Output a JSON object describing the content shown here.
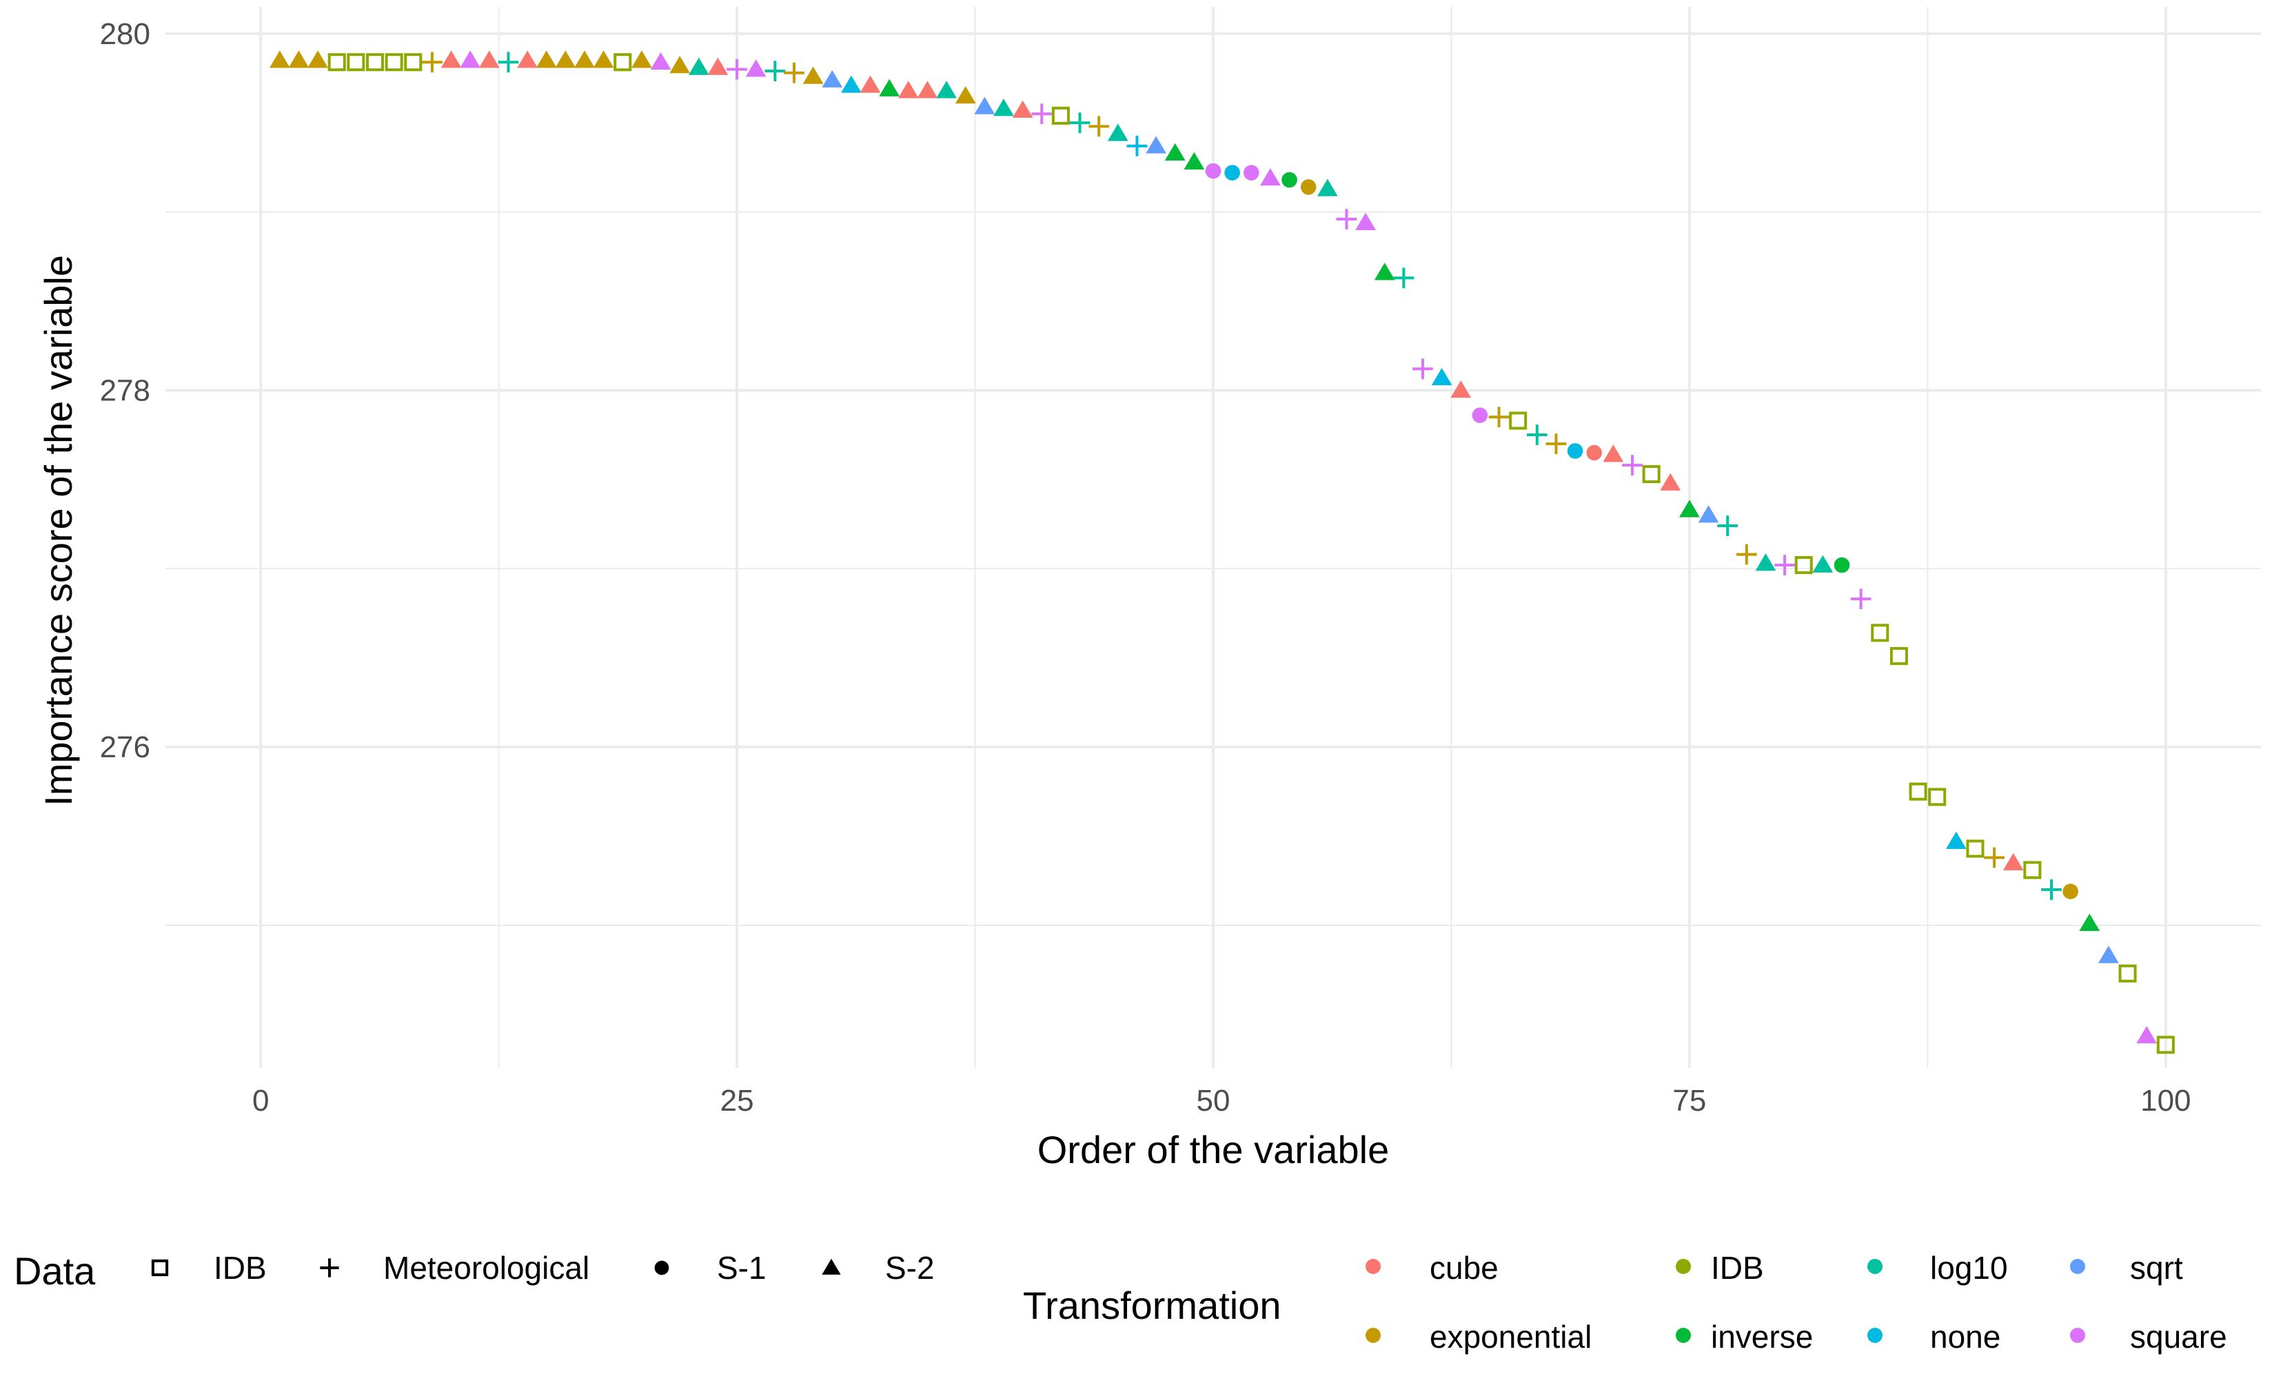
{
  "chart_data": {
    "type": "scatter",
    "title": "",
    "xlabel": "Order of the variable",
    "ylabel": "Importance score of the variable",
    "xlim": [
      -5,
      105
    ],
    "ylim": [
      274.2,
      280.15
    ],
    "x_ticks": [
      0,
      25,
      50,
      75,
      100
    ],
    "x_tick_labels": [
      "0",
      "25",
      "50",
      "75",
      "100"
    ],
    "y_ticks": [
      276,
      278,
      280
    ],
    "y_tick_labels": [
      "276",
      "278",
      "280"
    ],
    "grid": true,
    "legend_data": {
      "title": "Data",
      "items": [
        {
          "key": "IDB",
          "label": "IDB",
          "shape": "open-square"
        },
        {
          "key": "Meteorological",
          "label": "Meteorological",
          "shape": "plus"
        },
        {
          "key": "S-1",
          "label": "S-1",
          "shape": "circle"
        },
        {
          "key": "S-2",
          "label": "S-2",
          "shape": "triangle"
        }
      ]
    },
    "legend_transformation": {
      "title": "Transformation",
      "items": [
        {
          "key": "cube",
          "label": "cube",
          "color": "#F8766D"
        },
        {
          "key": "exponential",
          "label": "exponential",
          "color": "#C49A00"
        },
        {
          "key": "IDB",
          "label": "IDB",
          "color": "#8FA800"
        },
        {
          "key": "inverse",
          "label": "inverse",
          "color": "#00BA38"
        },
        {
          "key": "log10",
          "label": "log10",
          "color": "#00C19F"
        },
        {
          "key": "none",
          "label": "none",
          "color": "#00B9E3"
        },
        {
          "key": "sqrt",
          "label": "sqrt",
          "color": "#619CFF"
        },
        {
          "key": "square",
          "label": "square",
          "color": "#DB72FB"
        }
      ]
    },
    "points": [
      {
        "x": 1,
        "y": 279.85,
        "data": "S-2",
        "transformation": "exponential"
      },
      {
        "x": 2,
        "y": 279.85,
        "data": "S-2",
        "transformation": "exponential"
      },
      {
        "x": 3,
        "y": 279.85,
        "data": "S-2",
        "transformation": "exponential"
      },
      {
        "x": 4,
        "y": 279.84,
        "data": "IDB",
        "transformation": "IDB"
      },
      {
        "x": 5,
        "y": 279.84,
        "data": "IDB",
        "transformation": "IDB"
      },
      {
        "x": 6,
        "y": 279.84,
        "data": "IDB",
        "transformation": "IDB"
      },
      {
        "x": 7,
        "y": 279.84,
        "data": "IDB",
        "transformation": "IDB"
      },
      {
        "x": 8,
        "y": 279.84,
        "data": "IDB",
        "transformation": "IDB"
      },
      {
        "x": 9,
        "y": 279.84,
        "data": "Meteorological",
        "transformation": "exponential"
      },
      {
        "x": 10,
        "y": 279.85,
        "data": "S-2",
        "transformation": "cube"
      },
      {
        "x": 11,
        "y": 279.85,
        "data": "S-2",
        "transformation": "square"
      },
      {
        "x": 12,
        "y": 279.85,
        "data": "S-2",
        "transformation": "cube"
      },
      {
        "x": 13,
        "y": 279.84,
        "data": "Meteorological",
        "transformation": "log10"
      },
      {
        "x": 14,
        "y": 279.85,
        "data": "S-2",
        "transformation": "cube"
      },
      {
        "x": 15,
        "y": 279.85,
        "data": "S-2",
        "transformation": "exponential"
      },
      {
        "x": 16,
        "y": 279.85,
        "data": "S-2",
        "transformation": "exponential"
      },
      {
        "x": 17,
        "y": 279.85,
        "data": "S-2",
        "transformation": "exponential"
      },
      {
        "x": 18,
        "y": 279.85,
        "data": "S-2",
        "transformation": "exponential"
      },
      {
        "x": 19,
        "y": 279.84,
        "data": "IDB",
        "transformation": "IDB"
      },
      {
        "x": 20,
        "y": 279.85,
        "data": "S-2",
        "transformation": "exponential"
      },
      {
        "x": 21,
        "y": 279.84,
        "data": "S-2",
        "transformation": "square"
      },
      {
        "x": 22,
        "y": 279.82,
        "data": "S-2",
        "transformation": "exponential"
      },
      {
        "x": 23,
        "y": 279.81,
        "data": "S-2",
        "transformation": "log10"
      },
      {
        "x": 24,
        "y": 279.81,
        "data": "S-2",
        "transformation": "cube"
      },
      {
        "x": 25,
        "y": 279.8,
        "data": "Meteorological",
        "transformation": "square"
      },
      {
        "x": 26,
        "y": 279.8,
        "data": "S-2",
        "transformation": "square"
      },
      {
        "x": 27,
        "y": 279.79,
        "data": "Meteorological",
        "transformation": "log10"
      },
      {
        "x": 28,
        "y": 279.78,
        "data": "Meteorological",
        "transformation": "exponential"
      },
      {
        "x": 29,
        "y": 279.76,
        "data": "S-2",
        "transformation": "exponential"
      },
      {
        "x": 30,
        "y": 279.74,
        "data": "S-2",
        "transformation": "sqrt"
      },
      {
        "x": 31,
        "y": 279.71,
        "data": "S-2",
        "transformation": "none"
      },
      {
        "x": 32,
        "y": 279.71,
        "data": "S-2",
        "transformation": "cube"
      },
      {
        "x": 33,
        "y": 279.69,
        "data": "S-2",
        "transformation": "inverse"
      },
      {
        "x": 34,
        "y": 279.68,
        "data": "S-2",
        "transformation": "cube"
      },
      {
        "x": 35,
        "y": 279.68,
        "data": "S-2",
        "transformation": "cube"
      },
      {
        "x": 36,
        "y": 279.68,
        "data": "S-2",
        "transformation": "log10"
      },
      {
        "x": 37,
        "y": 279.65,
        "data": "S-2",
        "transformation": "exponential"
      },
      {
        "x": 38,
        "y": 279.59,
        "data": "S-2",
        "transformation": "sqrt"
      },
      {
        "x": 39,
        "y": 279.58,
        "data": "S-2",
        "transformation": "log10"
      },
      {
        "x": 40,
        "y": 279.57,
        "data": "S-2",
        "transformation": "cube"
      },
      {
        "x": 41,
        "y": 279.55,
        "data": "Meteorological",
        "transformation": "square"
      },
      {
        "x": 42,
        "y": 279.54,
        "data": "IDB",
        "transformation": "IDB"
      },
      {
        "x": 43,
        "y": 279.5,
        "data": "Meteorological",
        "transformation": "log10"
      },
      {
        "x": 44,
        "y": 279.48,
        "data": "Meteorological",
        "transformation": "exponential"
      },
      {
        "x": 45,
        "y": 279.44,
        "data": "S-2",
        "transformation": "log10"
      },
      {
        "x": 46,
        "y": 279.37,
        "data": "Meteorological",
        "transformation": "none"
      },
      {
        "x": 47,
        "y": 279.37,
        "data": "S-2",
        "transformation": "sqrt"
      },
      {
        "x": 48,
        "y": 279.33,
        "data": "S-2",
        "transformation": "inverse"
      },
      {
        "x": 49,
        "y": 279.28,
        "data": "S-2",
        "transformation": "inverse"
      },
      {
        "x": 50,
        "y": 279.23,
        "data": "S-1",
        "transformation": "square"
      },
      {
        "x": 51,
        "y": 279.22,
        "data": "S-1",
        "transformation": "none"
      },
      {
        "x": 52,
        "y": 279.22,
        "data": "S-1",
        "transformation": "square"
      },
      {
        "x": 53,
        "y": 279.19,
        "data": "S-2",
        "transformation": "square"
      },
      {
        "x": 54,
        "y": 279.18,
        "data": "S-1",
        "transformation": "inverse"
      },
      {
        "x": 55,
        "y": 279.14,
        "data": "S-1",
        "transformation": "exponential"
      },
      {
        "x": 56,
        "y": 279.13,
        "data": "S-2",
        "transformation": "log10"
      },
      {
        "x": 57,
        "y": 278.96,
        "data": "Meteorological",
        "transformation": "square"
      },
      {
        "x": 58,
        "y": 278.94,
        "data": "S-2",
        "transformation": "square"
      },
      {
        "x": 59,
        "y": 278.66,
        "data": "S-2",
        "transformation": "inverse"
      },
      {
        "x": 60,
        "y": 278.63,
        "data": "Meteorological",
        "transformation": "log10"
      },
      {
        "x": 61,
        "y": 278.12,
        "data": "Meteorological",
        "transformation": "square"
      },
      {
        "x": 62,
        "y": 278.07,
        "data": "S-2",
        "transformation": "none"
      },
      {
        "x": 63,
        "y": 278.0,
        "data": "S-2",
        "transformation": "cube"
      },
      {
        "x": 64,
        "y": 277.86,
        "data": "S-1",
        "transformation": "square"
      },
      {
        "x": 65,
        "y": 277.85,
        "data": "Meteorological",
        "transformation": "exponential"
      },
      {
        "x": 66,
        "y": 277.83,
        "data": "IDB",
        "transformation": "IDB"
      },
      {
        "x": 67,
        "y": 277.75,
        "data": "Meteorological",
        "transformation": "log10"
      },
      {
        "x": 68,
        "y": 277.7,
        "data": "Meteorological",
        "transformation": "exponential"
      },
      {
        "x": 69,
        "y": 277.66,
        "data": "S-1",
        "transformation": "none"
      },
      {
        "x": 70,
        "y": 277.65,
        "data": "S-1",
        "transformation": "cube"
      },
      {
        "x": 71,
        "y": 277.64,
        "data": "S-2",
        "transformation": "cube"
      },
      {
        "x": 72,
        "y": 277.58,
        "data": "Meteorological",
        "transformation": "square"
      },
      {
        "x": 73,
        "y": 277.53,
        "data": "IDB",
        "transformation": "IDB"
      },
      {
        "x": 74,
        "y": 277.48,
        "data": "S-2",
        "transformation": "cube"
      },
      {
        "x": 75,
        "y": 277.33,
        "data": "S-2",
        "transformation": "inverse"
      },
      {
        "x": 76,
        "y": 277.3,
        "data": "S-2",
        "transformation": "sqrt"
      },
      {
        "x": 77,
        "y": 277.24,
        "data": "Meteorological",
        "transformation": "log10"
      },
      {
        "x": 78,
        "y": 277.08,
        "data": "Meteorological",
        "transformation": "exponential"
      },
      {
        "x": 79,
        "y": 277.03,
        "data": "S-2",
        "transformation": "log10"
      },
      {
        "x": 80,
        "y": 277.02,
        "data": "Meteorological",
        "transformation": "square"
      },
      {
        "x": 81,
        "y": 277.02,
        "data": "IDB",
        "transformation": "IDB"
      },
      {
        "x": 82,
        "y": 277.02,
        "data": "S-2",
        "transformation": "log10"
      },
      {
        "x": 83,
        "y": 277.02,
        "data": "S-1",
        "transformation": "inverse"
      },
      {
        "x": 84,
        "y": 276.83,
        "data": "Meteorological",
        "transformation": "square"
      },
      {
        "x": 85,
        "y": 276.64,
        "data": "IDB",
        "transformation": "IDB"
      },
      {
        "x": 86,
        "y": 276.51,
        "data": "IDB",
        "transformation": "IDB"
      },
      {
        "x": 87,
        "y": 275.75,
        "data": "IDB",
        "transformation": "IDB"
      },
      {
        "x": 88,
        "y": 275.72,
        "data": "IDB",
        "transformation": "IDB"
      },
      {
        "x": 89,
        "y": 275.47,
        "data": "S-2",
        "transformation": "none"
      },
      {
        "x": 90,
        "y": 275.43,
        "data": "IDB",
        "transformation": "IDB"
      },
      {
        "x": 91,
        "y": 275.38,
        "data": "Meteorological",
        "transformation": "exponential"
      },
      {
        "x": 92,
        "y": 275.35,
        "data": "S-2",
        "transformation": "cube"
      },
      {
        "x": 93,
        "y": 275.31,
        "data": "IDB",
        "transformation": "IDB"
      },
      {
        "x": 94,
        "y": 275.2,
        "data": "Meteorological",
        "transformation": "log10"
      },
      {
        "x": 95,
        "y": 275.19,
        "data": "S-1",
        "transformation": "exponential"
      },
      {
        "x": 96,
        "y": 275.01,
        "data": "S-2",
        "transformation": "inverse"
      },
      {
        "x": 97,
        "y": 274.83,
        "data": "S-2",
        "transformation": "sqrt"
      },
      {
        "x": 98,
        "y": 274.73,
        "data": "IDB",
        "transformation": "IDB"
      },
      {
        "x": 99,
        "y": 274.38,
        "data": "S-2",
        "transformation": "square"
      },
      {
        "x": 100,
        "y": 274.33,
        "data": "IDB",
        "transformation": "IDB"
      }
    ]
  }
}
